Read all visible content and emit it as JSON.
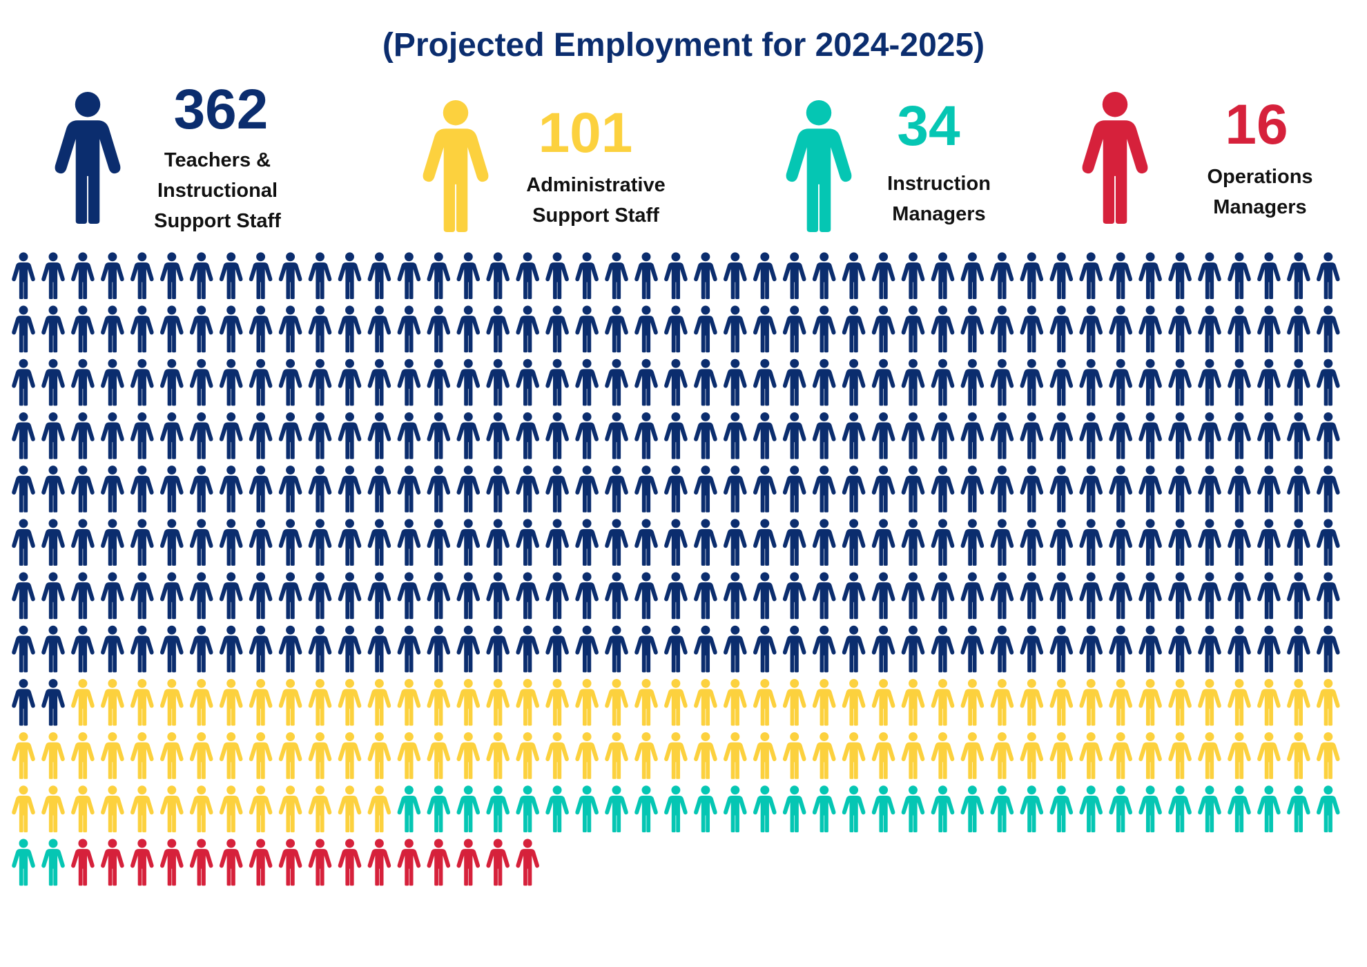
{
  "title": "(Projected Employment for 2024-2025)",
  "colors": {
    "title": "#0b2d6e",
    "teachers": "#0b2d6e",
    "administrative": "#fcd13e",
    "instruction": "#05c6b3",
    "operations": "#d6213b"
  },
  "legend": [
    {
      "count": "362",
      "label_lines": [
        "Teachers &",
        "Instructional",
        "Support Staff"
      ],
      "color_key": "teachers",
      "icon": "person-icon"
    },
    {
      "count": "101",
      "label_lines": [
        "Administrative",
        "Support Staff"
      ],
      "color_key": "administrative",
      "icon": "person-icon"
    },
    {
      "count": "34",
      "label_lines": [
        "Instruction",
        "Managers"
      ],
      "color_key": "instruction",
      "icon": "person-icon"
    },
    {
      "count": "16",
      "label_lines": [
        "Operations",
        "Managers"
      ],
      "color_key": "operations",
      "icon": "person-icon"
    }
  ],
  "chart_data": {
    "type": "pictograph",
    "title": "(Projected Employment for 2024-2025)",
    "unit": "1 icon = 1 employee",
    "categories": [
      "Teachers & Instructional Support Staff",
      "Administrative Support Staff",
      "Instruction Managers",
      "Operations Managers"
    ],
    "values": [
      362,
      101,
      34,
      16
    ],
    "colors": [
      "#0b2d6e",
      "#fcd13e",
      "#05c6b3",
      "#d6213b"
    ],
    "icons_per_row": 45
  }
}
